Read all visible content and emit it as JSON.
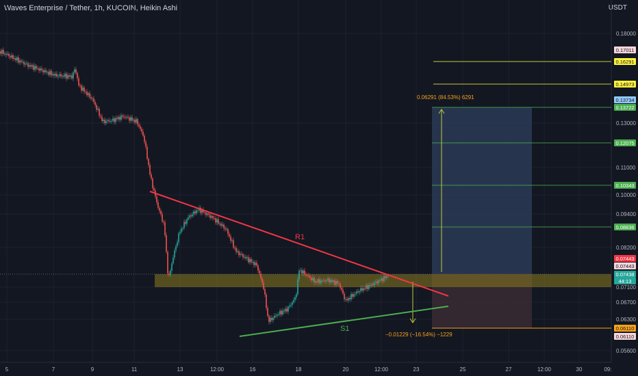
{
  "header": {
    "title": "Waves Enterprise / Tether, 1h, KUCOIN, Heikin Ashi",
    "currency": "USDT"
  },
  "colors": {
    "bg": "#131722",
    "up": "#26a69a",
    "down": "#ef5350",
    "resistance": "#f23645",
    "support": "#4caf50",
    "zone": "#8a7a1f",
    "target": "#c8c83a",
    "profit_box": "#2a3b55",
    "loss_box": "#3a2a33",
    "orange": "#f7a21b"
  },
  "chart_data": {
    "type": "candlestick",
    "title": "Waves Enterprise / Tether, 1h, KUCOIN, Heikin Ashi",
    "y_axis": {
      "side": "right",
      "scale": "linear",
      "ticks": [
        "0.18000",
        "0.13000",
        "0.11000",
        "0.10000",
        "0.09400",
        "0.08200",
        "0.07100",
        "0.06700",
        "0.06300",
        "0.05600"
      ]
    },
    "x_axis": {
      "ticks": [
        "5",
        "7",
        "9",
        "11",
        "13",
        "12:00",
        "16",
        "18",
        "20",
        "12:00",
        "23",
        "25",
        "27",
        "12:00",
        "30",
        "09:"
      ]
    },
    "price_tags": [
      {
        "label": "0.17011",
        "bg": "#f8d7da",
        "fg": "#131722"
      },
      {
        "label": "0.16291",
        "bg": "#fff33b",
        "fg": "#131722"
      },
      {
        "label": "0.14973",
        "bg": "#fff33b",
        "fg": "#131722"
      },
      {
        "label": "0.13734",
        "bg": "#90caf9",
        "fg": "#131722"
      },
      {
        "label": "0.13722",
        "bg": "#4caf50",
        "fg": "#ffffff"
      },
      {
        "label": "0.12075",
        "bg": "#4caf50",
        "fg": "#ffffff"
      },
      {
        "label": "0.10343",
        "bg": "#4caf50",
        "fg": "#ffffff"
      },
      {
        "label": "0.08836",
        "bg": "#4caf50",
        "fg": "#ffffff"
      },
      {
        "label": "0.07443",
        "bg": "#f23645",
        "fg": "#ffffff"
      },
      {
        "label": "0.07443",
        "bg": "#f8d7da",
        "fg": "#131722"
      },
      {
        "label": "0.07438",
        "bg": "#26a69a",
        "fg": "#ffffff"
      },
      {
        "label": "44:13",
        "bg": "#26a69a",
        "fg": "#ffffff"
      },
      {
        "label": "0.06110",
        "bg": "#f7a21b",
        "fg": "#131722"
      },
      {
        "label": "0.06110",
        "bg": "#f8d7da",
        "fg": "#131722"
      }
    ],
    "annotations": {
      "resistance_label": "R1",
      "support_label": "S1",
      "profit_text": "0.06291 (84.53%) 6291",
      "loss_text": "−0.01229 (−16.54%) −1229"
    }
  }
}
